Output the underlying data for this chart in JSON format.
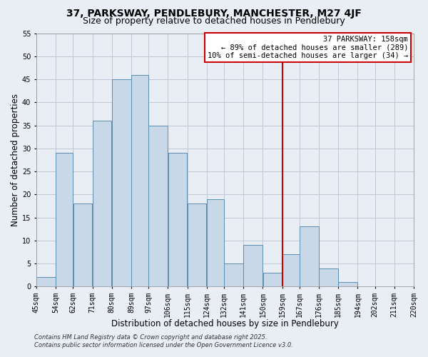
{
  "title": "37, PARKSWAY, PENDLEBURY, MANCHESTER, M27 4JF",
  "subtitle": "Size of property relative to detached houses in Pendlebury",
  "xlabel": "Distribution of detached houses by size in Pendlebury",
  "ylabel": "Number of detached properties",
  "bar_left_edges": [
    45,
    54,
    62,
    71,
    80,
    89,
    97,
    106,
    115,
    124,
    132,
    141,
    150,
    159,
    167,
    176,
    185,
    194,
    202,
    211
  ],
  "bar_widths": [
    9,
    8,
    9,
    9,
    9,
    8,
    9,
    9,
    9,
    8,
    9,
    9,
    9,
    8,
    9,
    9,
    9,
    8,
    9,
    9
  ],
  "bar_heights": [
    2,
    29,
    18,
    36,
    45,
    46,
    35,
    29,
    18,
    19,
    5,
    9,
    3,
    7,
    13,
    4,
    1,
    0,
    0,
    0
  ],
  "x_tick_labels": [
    "45sqm",
    "54sqm",
    "62sqm",
    "71sqm",
    "80sqm",
    "89sqm",
    "97sqm",
    "106sqm",
    "115sqm",
    "124sqm",
    "132sqm",
    "141sqm",
    "150sqm",
    "159sqm",
    "167sqm",
    "176sqm",
    "185sqm",
    "194sqm",
    "202sqm",
    "211sqm",
    "220sqm"
  ],
  "x_tick_positions": [
    45,
    54,
    62,
    71,
    80,
    89,
    97,
    106,
    115,
    124,
    132,
    141,
    150,
    159,
    167,
    176,
    185,
    194,
    202,
    211,
    220
  ],
  "ylim": [
    0,
    55
  ],
  "xlim": [
    45,
    220
  ],
  "bar_color": "#c8d8e8",
  "bar_edge_color": "#5a8db0",
  "grid_color": "#c0c8d8",
  "vline_x": 159,
  "vline_color": "#cc0000",
  "annotation_title": "37 PARKSWAY: 158sqm",
  "annotation_line1": "← 89% of detached houses are smaller (289)",
  "annotation_line2": "10% of semi-detached houses are larger (34) →",
  "annotation_box_edge_color": "#cc0000",
  "footer_line1": "Contains HM Land Registry data © Crown copyright and database right 2025.",
  "footer_line2": "Contains public sector information licensed under the Open Government Licence v3.0.",
  "background_color": "#e8eef4",
  "title_fontsize": 10,
  "subtitle_fontsize": 9,
  "axis_label_fontsize": 8.5,
  "tick_fontsize": 7,
  "annotation_fontsize": 7.5,
  "footer_fontsize": 6
}
